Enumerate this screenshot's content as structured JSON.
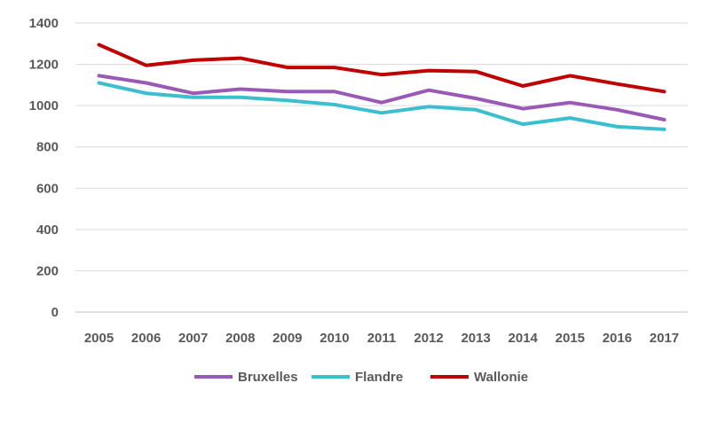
{
  "chart_data": {
    "type": "line",
    "title": "",
    "xlabel": "",
    "ylabel": "",
    "categories": [
      "2005",
      "2006",
      "2007",
      "2008",
      "2009",
      "2010",
      "2011",
      "2012",
      "2013",
      "2014",
      "2015",
      "2016",
      "2017"
    ],
    "y_ticks": [
      "0",
      "200",
      "400",
      "600",
      "800",
      "1000",
      "1200",
      "1400"
    ],
    "ylim": [
      0,
      1400
    ],
    "grid": true,
    "legend_position": "bottom",
    "series": [
      {
        "name": "Bruxelles",
        "color": "#9B59B6",
        "values": [
          1145,
          1110,
          1060,
          1080,
          1068,
          1068,
          1015,
          1075,
          1035,
          985,
          1015,
          980,
          932
        ]
      },
      {
        "name": "Flandre",
        "color": "#3BBFCE",
        "values": [
          1110,
          1060,
          1040,
          1040,
          1025,
          1005,
          965,
          995,
          980,
          910,
          940,
          898,
          885
        ]
      },
      {
        "name": "Wallonie",
        "color": "#C00000",
        "values": [
          1295,
          1195,
          1220,
          1230,
          1185,
          1185,
          1150,
          1170,
          1165,
          1095,
          1145,
          1105,
          1068
        ]
      }
    ]
  }
}
